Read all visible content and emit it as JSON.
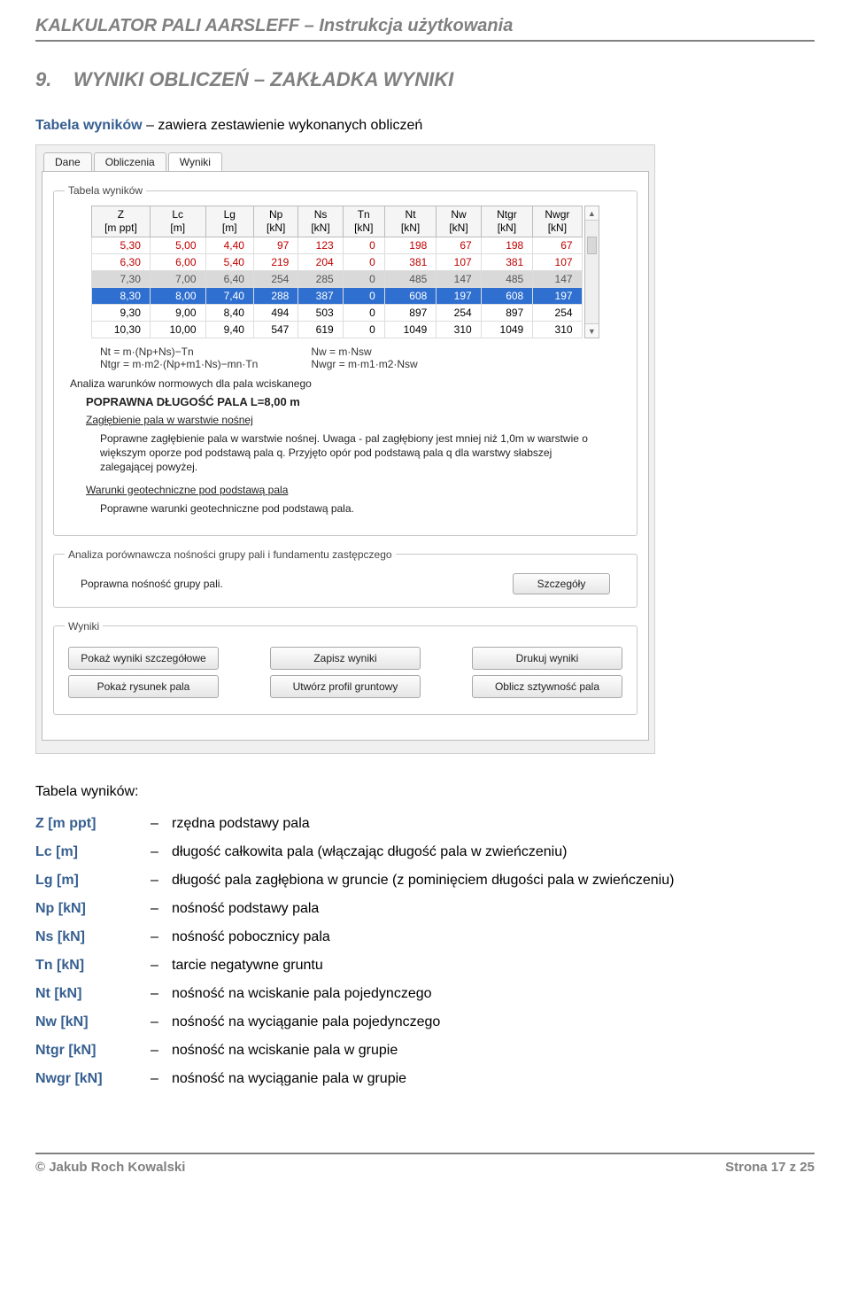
{
  "doc_title": "KALKULATOR PALI AARSLEFF – Instrukcja użytkowania",
  "section": {
    "number": "9.",
    "title": "WYNIKI OBLICZEŃ – ZAKŁADKA WYNIKI"
  },
  "caption": {
    "lead": "Tabela wyników",
    "rest": " – zawiera zestawienie wykonanych obliczeń"
  },
  "screenshot": {
    "tabs": [
      "Dane",
      "Obliczenia",
      "Wyniki"
    ],
    "active_tab": 2,
    "results_fieldset_legend": "Tabela wyników",
    "table": {
      "columns": [
        {
          "l1": "Z",
          "l2": "[m ppt]"
        },
        {
          "l1": "Lc",
          "l2": "[m]"
        },
        {
          "l1": "Lg",
          "l2": "[m]"
        },
        {
          "l1": "Np",
          "l2": "[kN]"
        },
        {
          "l1": "Ns",
          "l2": "[kN]"
        },
        {
          "l1": "Tn",
          "l2": "[kN]"
        },
        {
          "l1": "Nt",
          "l2": "[kN]"
        },
        {
          "l1": "Nw",
          "l2": "[kN]"
        },
        {
          "l1": "Ntgr",
          "l2": "[kN]"
        },
        {
          "l1": "Nwgr",
          "l2": "[kN]"
        }
      ],
      "rows": [
        {
          "style": "red",
          "cells": [
            "5,30",
            "5,00",
            "4,40",
            "97",
            "123",
            "0",
            "198",
            "67",
            "198",
            "67"
          ]
        },
        {
          "style": "red",
          "cells": [
            "6,30",
            "6,00",
            "5,40",
            "219",
            "204",
            "0",
            "381",
            "107",
            "381",
            "107"
          ]
        },
        {
          "style": "greysel",
          "cells": [
            "7,30",
            "7,00",
            "6,40",
            "254",
            "285",
            "0",
            "485",
            "147",
            "485",
            "147"
          ]
        },
        {
          "style": "bluesel",
          "cells": [
            "8,30",
            "8,00",
            "7,40",
            "288",
            "387",
            "0",
            "608",
            "197",
            "608",
            "197"
          ]
        },
        {
          "style": "normal",
          "cells": [
            "9,30",
            "9,00",
            "8,40",
            "494",
            "503",
            "0",
            "897",
            "254",
            "897",
            "254"
          ]
        },
        {
          "style": "normal",
          "cells": [
            "10,30",
            "10,00",
            "9,40",
            "547",
            "619",
            "0",
            "1049",
            "310",
            "1049",
            "310"
          ]
        }
      ],
      "row_colors": {
        "red": "#c00000",
        "greysel_bg": "#d9d9d9",
        "bluesel_bg": "#2f6fd0",
        "bluesel_fg": "#ffffff"
      }
    },
    "formulas": {
      "left1": "Nt = m·(Np+Ns)−Tn",
      "left2": "Ntgr = m·m2·(Np+m1·Ns)−mn·Tn",
      "right1": "Nw = m·Nsw",
      "right2": "Nwgr = m·m1·m2·Nsw"
    },
    "analysis_lead": "Analiza warunków normowych dla pala wciskanego",
    "bold_correct": "POPRAWNA DŁUGOŚĆ PALA L=8,00 m",
    "under1": "Zagłębienie pala w warstwie nośnej",
    "para1": "Poprawne zagłębienie pala w warstwie nośnej. Uwaga - pal zagłębiony jest mniej niż 1,0m w warstwie o większym oporze pod podstawą pala q. Przyjęto opór pod podstawą pala q dla warstwy słabszej zalegającej powyżej.",
    "under2": "Warunki geotechniczne pod podstawą pala",
    "para2": "Poprawne warunki geotechniczne pod podstawą pala.",
    "compare_fieldset_legend": "Analiza porównawcza nośności grupy pali i fundamentu zastępczego",
    "compare_text": "Poprawna nośność grupy pali.",
    "compare_button": "Szczegóły",
    "wyniki_fieldset_legend": "Wyniki",
    "buttons_row1": [
      "Pokaż wyniki szczegółowe",
      "Zapisz wyniki",
      "Drukuj wyniki"
    ],
    "buttons_row2": [
      "Pokaż rysunek pala",
      "Utwórz profil gruntowy",
      "Oblicz sztywność pala"
    ]
  },
  "desc_heading": "Tabela wyników:",
  "defs": [
    {
      "term": "Z [m ppt]",
      "def": "rzędna podstawy pala"
    },
    {
      "term": "Lc [m]",
      "def": "długość całkowita pala (włączając długość pala w zwieńczeniu)"
    },
    {
      "term": "Lg [m]",
      "def": "długość pala zagłębiona w gruncie (z pominięciem długości pala w zwieńczeniu)"
    },
    {
      "term": "Np [kN]",
      "def": "nośność podstawy pala"
    },
    {
      "term": "Ns [kN]",
      "def": "nośność pobocznicy pala"
    },
    {
      "term": "Tn [kN]",
      "def": "tarcie negatywne gruntu"
    },
    {
      "term": "Nt [kN]",
      "def": "nośność na wciskanie pala pojedynczego"
    },
    {
      "term": "Nw [kN]",
      "def": "nośność na wyciąganie pala pojedynczego"
    },
    {
      "term": "Ntgr [kN]",
      "def": "nośność na wciskanie pala w grupie"
    },
    {
      "term": "Nwgr [kN]",
      "def": "nośność na wyciąganie pala w grupie"
    }
  ],
  "footer": {
    "left": "© Jakub Roch Kowalski",
    "right": "Strona 17 z 25"
  }
}
